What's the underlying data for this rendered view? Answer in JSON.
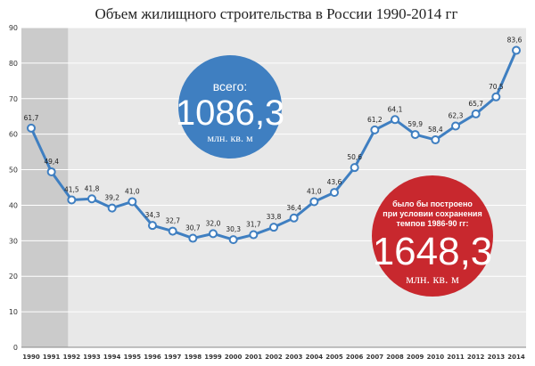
{
  "chart_data": {
    "type": "line",
    "title": "Объем жилищного строительства в России 1990-2014 гг",
    "categories": [
      "1990",
      "1991",
      "1992",
      "1993",
      "1994",
      "1995",
      "1996",
      "1997",
      "1998",
      "1999",
      "2000",
      "2001",
      "2002",
      "2003",
      "2004",
      "2005",
      "2006",
      "2007",
      "2008",
      "2009",
      "2010",
      "2011",
      "2012",
      "2013",
      "2014"
    ],
    "values": [
      61.7,
      49.4,
      41.5,
      41.8,
      39.2,
      41.0,
      34.3,
      32.7,
      30.7,
      32.0,
      30.3,
      31.7,
      33.8,
      36.4,
      41.0,
      43.6,
      50.6,
      61.2,
      64.1,
      59.9,
      58.4,
      62.3,
      65.7,
      70.5,
      83.6
    ],
    "value_labels": [
      "61,7",
      "49,4",
      "41,5",
      "41,8",
      "39,2",
      "41,0",
      "34,3",
      "32,7",
      "30,7",
      "32,0",
      "30,3",
      "31,7",
      "33,8",
      "36,4",
      "41,0",
      "43,6",
      "50,6",
      "61,2",
      "64,1",
      "59,9",
      "58,4",
      "62,3",
      "65,7",
      "70,5",
      "83,6"
    ],
    "ylim": [
      0,
      90
    ],
    "yticks": [
      0,
      10,
      20,
      30,
      40,
      50,
      60,
      70,
      80,
      90
    ],
    "grid": true,
    "shaded_period": [
      "1990",
      "1992"
    ],
    "colors": {
      "line": "#3f7fc1",
      "marker_fill": "#ffffff",
      "plot_bg": "#e8e8e8",
      "shaded_bg": "#cbcbcb",
      "blue_badge": "#3f7fc1",
      "red_badge": "#c8282e"
    }
  },
  "annotations": {
    "total": {
      "label": "всего:",
      "value": "1086,3",
      "unit": "млн. кв. м"
    },
    "hypothetical": {
      "note_lines": [
        "было бы построено",
        "при условии сохранения",
        "темпов 1986-90 гг:"
      ],
      "value": "1648,3",
      "unit": "млн. кв. м"
    }
  }
}
